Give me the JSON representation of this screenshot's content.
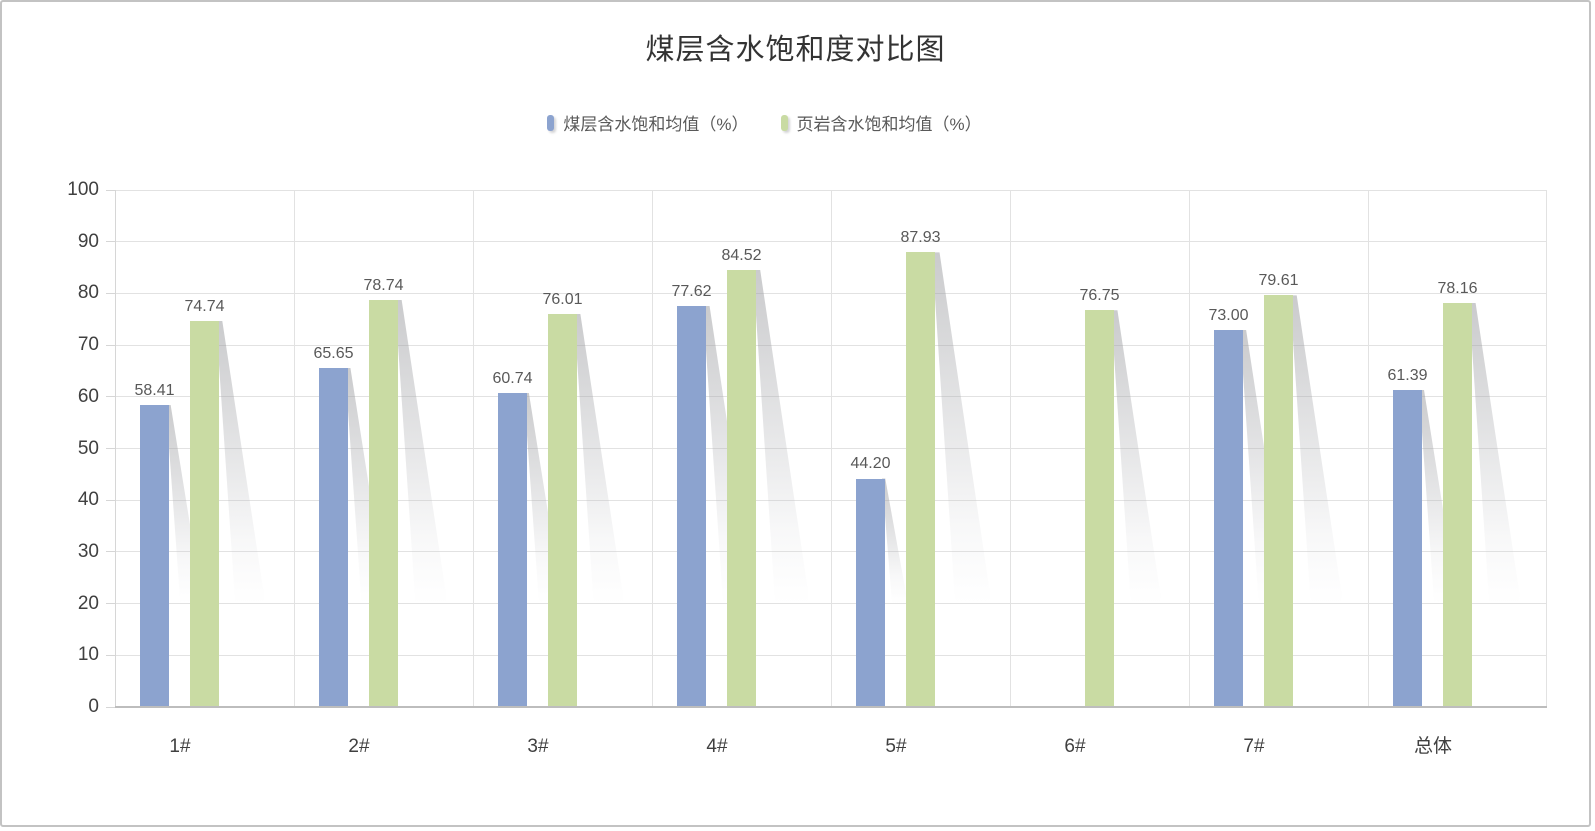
{
  "chart_data": {
    "type": "bar",
    "title": "煤层含水饱和度对比图",
    "categories": [
      "1#",
      "2#",
      "3#",
      "4#",
      "5#",
      "6#",
      "7#",
      "总体"
    ],
    "series": [
      {
        "name": "煤层含水饱和均值（%）",
        "color": "#8CA3CF",
        "values": [
          58.41,
          65.65,
          60.74,
          77.62,
          44.2,
          null,
          73.0,
          61.39
        ]
      },
      {
        "name": "页岩含水饱和均值（%）",
        "color": "#C9DBA3",
        "values": [
          74.74,
          78.74,
          76.01,
          84.52,
          87.93,
          76.75,
          79.61,
          78.16
        ]
      }
    ],
    "xlabel": "",
    "ylabel": "",
    "ylim": [
      0,
      100
    ],
    "y_ticks": [
      0,
      10,
      20,
      30,
      40,
      50,
      60,
      70,
      80,
      90,
      100
    ],
    "grid": true,
    "legend_position": "top",
    "value_labels": true,
    "value_label_decimals": 2
  },
  "style": {
    "title_color": "#333333",
    "legend_text_color": "#595959",
    "grid_color": "#E2E2E2",
    "axis_line_color": "#D6D6D6",
    "baseline_color": "#BDBDBD",
    "tick_label_color": "#404040",
    "value_label_color": "#595959",
    "frame_border_color": "#C3C3C3",
    "shadow_color_top": "rgba(150,151,155,0.50)",
    "shadow_color_mid": "rgba(171,172,176,0.32)",
    "shadow_color_low": "rgba(200,201,205,0.13)"
  }
}
